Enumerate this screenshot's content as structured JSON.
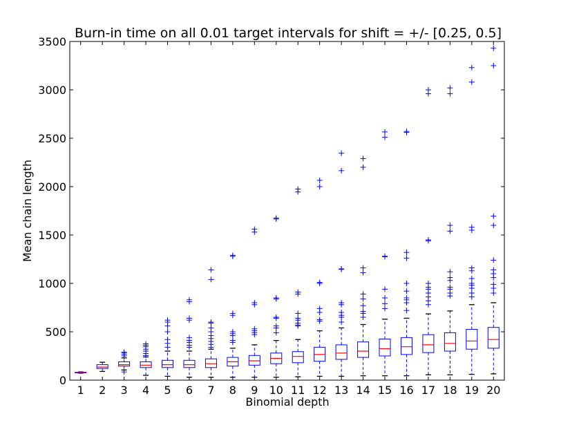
{
  "chart_data": {
    "type": "box",
    "title": "Burn-in time on all 0.01 target intervals for shift = +/- [0.25, 0.5]",
    "xlabel": "Binomial depth",
    "ylabel": "Mean chain length",
    "ylim": [
      0,
      3500
    ],
    "yticks": [
      0,
      500,
      1000,
      1500,
      2000,
      2500,
      3000,
      3500
    ],
    "categories": [
      "1",
      "2",
      "3",
      "4",
      "5",
      "6",
      "7",
      "8",
      "9",
      "10",
      "11",
      "12",
      "13",
      "14",
      "15",
      "16",
      "17",
      "18",
      "19",
      "20"
    ],
    "colors": {
      "box": "#0000ff",
      "median": "#ff0000",
      "cap": "#000000",
      "flier": "#0000ff",
      "axes": "#000000"
    },
    "boxes": [
      {
        "x": "1",
        "whislo": 72,
        "q1": 75,
        "med": 78,
        "q3": 82,
        "whishi": 85,
        "fliers": []
      },
      {
        "x": "2",
        "whislo": 90,
        "q1": 120,
        "med": 135,
        "q3": 160,
        "whishi": 185,
        "fliers": []
      },
      {
        "x": "3",
        "whislo": 105,
        "q1": 145,
        "med": 160,
        "q3": 190,
        "whishi": 230,
        "fliers": [
          250,
          265,
          280,
          290,
          85
        ]
      },
      {
        "x": "4",
        "whislo": 50,
        "q1": 130,
        "med": 155,
        "q3": 190,
        "whishi": 240,
        "fliers": [
          255,
          275,
          300,
          320,
          345,
          360,
          375
        ]
      },
      {
        "x": "5",
        "whislo": 40,
        "q1": 130,
        "med": 160,
        "q3": 205,
        "whishi": 300,
        "fliers": [
          340,
          380,
          420,
          500,
          560,
          600,
          620
        ]
      },
      {
        "x": "6",
        "whislo": 30,
        "q1": 130,
        "med": 160,
        "q3": 205,
        "whishi": 300,
        "fliers": [
          340,
          360,
          390,
          410,
          440,
          620,
          640,
          810,
          830
        ]
      },
      {
        "x": "7",
        "whislo": 30,
        "q1": 130,
        "med": 170,
        "q3": 220,
        "whishi": 320,
        "fliers": [
          340,
          370,
          400,
          430,
          460,
          500,
          540,
          590,
          600,
          1040,
          1140
        ]
      },
      {
        "x": "8",
        "whislo": 30,
        "q1": 145,
        "med": 190,
        "q3": 235,
        "whishi": 330,
        "fliers": [
          390,
          410,
          460,
          480,
          500,
          670,
          690,
          1280,
          1290
        ]
      },
      {
        "x": "9",
        "whislo": 30,
        "q1": 155,
        "med": 200,
        "q3": 255,
        "whishi": 365,
        "fliers": [
          470,
          490,
          510,
          530,
          780,
          800,
          1530,
          1560
        ]
      },
      {
        "x": "10",
        "whislo": 30,
        "q1": 170,
        "med": 225,
        "q3": 280,
        "whishi": 410,
        "fliers": [
          490,
          540,
          560,
          640,
          650,
          840,
          850,
          1665,
          1675
        ]
      },
      {
        "x": "11",
        "whislo": 35,
        "q1": 180,
        "med": 245,
        "q3": 295,
        "whishi": 420,
        "fliers": [
          560,
          570,
          590,
          620,
          640,
          690,
          890,
          910,
          1945,
          1975
        ]
      },
      {
        "x": "12",
        "whislo": 40,
        "q1": 195,
        "med": 265,
        "q3": 340,
        "whishi": 510,
        "fliers": [
          610,
          625,
          700,
          740,
          1000,
          1010,
          2000,
          2065
        ]
      },
      {
        "x": "13",
        "whislo": 40,
        "q1": 215,
        "med": 280,
        "q3": 365,
        "whishi": 540,
        "fliers": [
          600,
          650,
          670,
          700,
          780,
          800,
          1145,
          1150,
          2165,
          2345
        ]
      },
      {
        "x": "14",
        "whislo": 45,
        "q1": 235,
        "med": 300,
        "q3": 395,
        "whishi": 575,
        "fliers": [
          650,
          690,
          710,
          770,
          840,
          890,
          1110,
          1160,
          2200,
          2290
        ]
      },
      {
        "x": "15",
        "whislo": 45,
        "q1": 250,
        "med": 325,
        "q3": 425,
        "whishi": 630,
        "fliers": [
          740,
          790,
          850,
          940,
          1275,
          1280,
          2510,
          2565
        ]
      },
      {
        "x": "16",
        "whislo": 45,
        "q1": 265,
        "med": 345,
        "q3": 440,
        "whishi": 640,
        "fliers": [
          720,
          800,
          830,
          850,
          920,
          1000,
          1260,
          1320,
          2560,
          2570
        ]
      },
      {
        "x": "17",
        "whislo": 55,
        "q1": 285,
        "med": 365,
        "q3": 470,
        "whishi": 685,
        "fliers": [
          780,
          820,
          860,
          900,
          940,
          960,
          1000,
          1440,
          1450,
          2960,
          3000
        ]
      },
      {
        "x": "18",
        "whislo": 55,
        "q1": 300,
        "med": 380,
        "q3": 490,
        "whishi": 715,
        "fliers": [
          870,
          900,
          940,
          960,
          1030,
          1060,
          1120,
          1540,
          1600,
          2960,
          3020
        ]
      },
      {
        "x": "19",
        "whislo": 60,
        "q1": 320,
        "med": 405,
        "q3": 525,
        "whishi": 780,
        "fliers": [
          860,
          900,
          950,
          980,
          1000,
          1050,
          1130,
          1160,
          1550,
          1580,
          3080,
          3230
        ]
      },
      {
        "x": "20",
        "whislo": 65,
        "q1": 330,
        "med": 420,
        "q3": 545,
        "whishi": 800,
        "fliers": [
          900,
          950,
          990,
          1060,
          1100,
          1140,
          1240,
          1600,
          1695,
          3250,
          3430
        ]
      }
    ]
  }
}
